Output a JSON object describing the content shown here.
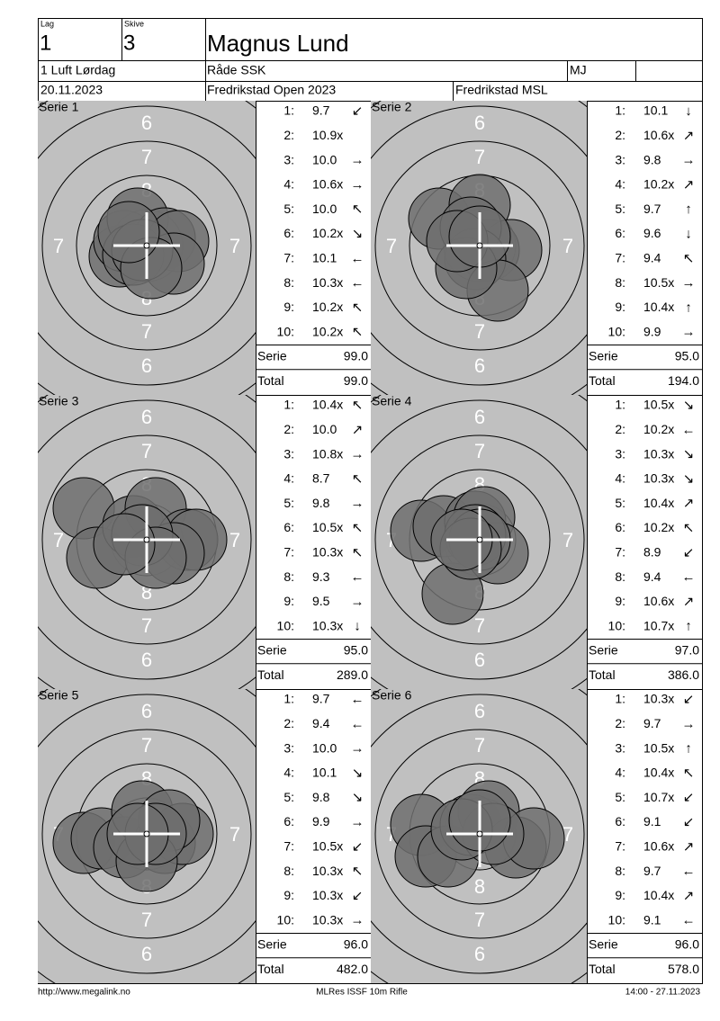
{
  "header": {
    "lag_label": "Lag",
    "lag": "1",
    "skive_label": "Skive",
    "skive": "3",
    "name": "Magnus Lund",
    "class": "1 Luft Lørdag",
    "club": "Råde SSK",
    "initials": "MJ",
    "date": "20.11.2023",
    "event": "Fredrikstad Open 2023",
    "location": "Fredrikstad MSL"
  },
  "target_labels": [
    "6",
    "7",
    "8"
  ],
  "series": [
    {
      "title": "Serie 1",
      "shots": [
        {
          "n": "1:",
          "value": "9.7",
          "arrow": "↙"
        },
        {
          "n": "2:",
          "value": "10.9x",
          "arrow": ""
        },
        {
          "n": "3:",
          "value": "10.0",
          "arrow": "→"
        },
        {
          "n": "4:",
          "value": "10.6x",
          "arrow": "→"
        },
        {
          "n": "5:",
          "value": "10.0",
          "arrow": "↖"
        },
        {
          "n": "6:",
          "value": "10.2x",
          "arrow": "↘"
        },
        {
          "n": "7:",
          "value": "10.1",
          "arrow": "←"
        },
        {
          "n": "8:",
          "value": "10.3x",
          "arrow": "←"
        },
        {
          "n": "9:",
          "value": "10.2x",
          "arrow": "↖"
        },
        {
          "n": "10:",
          "value": "10.2x",
          "arrow": "↖"
        }
      ],
      "serie_label": "Serie",
      "serie": "99.0",
      "total_label": "Total",
      "total": "99.0"
    },
    {
      "title": "Serie 2",
      "shots": [
        {
          "n": "1:",
          "value": "10.1",
          "arrow": "↓"
        },
        {
          "n": "2:",
          "value": "10.6x",
          "arrow": "↗"
        },
        {
          "n": "3:",
          "value": "9.8",
          "arrow": "→"
        },
        {
          "n": "4:",
          "value": "10.2x",
          "arrow": "↗"
        },
        {
          "n": "5:",
          "value": "9.7",
          "arrow": "↑"
        },
        {
          "n": "6:",
          "value": "9.6",
          "arrow": "↓"
        },
        {
          "n": "7:",
          "value": "9.4",
          "arrow": "↖"
        },
        {
          "n": "8:",
          "value": "10.5x",
          "arrow": "→"
        },
        {
          "n": "9:",
          "value": "10.4x",
          "arrow": "↑"
        },
        {
          "n": "10:",
          "value": "9.9",
          "arrow": "→"
        }
      ],
      "serie_label": "Serie",
      "serie": "95.0",
      "total_label": "Total",
      "total": "194.0"
    },
    {
      "title": "Serie 3",
      "shots": [
        {
          "n": "1:",
          "value": "10.4x",
          "arrow": "↖"
        },
        {
          "n": "2:",
          "value": "10.0",
          "arrow": "↗"
        },
        {
          "n": "3:",
          "value": "10.8x",
          "arrow": "→"
        },
        {
          "n": "4:",
          "value": "8.7",
          "arrow": "↖"
        },
        {
          "n": "5:",
          "value": "9.8",
          "arrow": "→"
        },
        {
          "n": "6:",
          "value": "10.5x",
          "arrow": "↖"
        },
        {
          "n": "7:",
          "value": "10.3x",
          "arrow": "↖"
        },
        {
          "n": "8:",
          "value": "9.3",
          "arrow": "←"
        },
        {
          "n": "9:",
          "value": "9.5",
          "arrow": "→"
        },
        {
          "n": "10:",
          "value": "10.3x",
          "arrow": "↓"
        }
      ],
      "serie_label": "Serie",
      "serie": "95.0",
      "total_label": "Total",
      "total": "289.0"
    },
    {
      "title": "Serie 4",
      "shots": [
        {
          "n": "1:",
          "value": "10.5x",
          "arrow": "↘"
        },
        {
          "n": "2:",
          "value": "10.2x",
          "arrow": "←"
        },
        {
          "n": "3:",
          "value": "10.3x",
          "arrow": "↘"
        },
        {
          "n": "4:",
          "value": "10.3x",
          "arrow": "↘"
        },
        {
          "n": "5:",
          "value": "10.4x",
          "arrow": "↗"
        },
        {
          "n": "6:",
          "value": "10.2x",
          "arrow": "↖"
        },
        {
          "n": "7:",
          "value": "8.9",
          "arrow": "↙"
        },
        {
          "n": "8:",
          "value": "9.4",
          "arrow": "←"
        },
        {
          "n": "9:",
          "value": "10.6x",
          "arrow": "↗"
        },
        {
          "n": "10:",
          "value": "10.7x",
          "arrow": "↑"
        }
      ],
      "serie_label": "Serie",
      "serie": "97.0",
      "total_label": "Total",
      "total": "386.0"
    },
    {
      "title": "Serie 5",
      "shots": [
        {
          "n": "1:",
          "value": "9.7",
          "arrow": "←"
        },
        {
          "n": "2:",
          "value": "9.4",
          "arrow": "←"
        },
        {
          "n": "3:",
          "value": "10.0",
          "arrow": "→"
        },
        {
          "n": "4:",
          "value": "10.1",
          "arrow": "↘"
        },
        {
          "n": "5:",
          "value": "9.8",
          "arrow": "↘"
        },
        {
          "n": "6:",
          "value": "9.9",
          "arrow": "→"
        },
        {
          "n": "7:",
          "value": "10.5x",
          "arrow": "↙"
        },
        {
          "n": "8:",
          "value": "10.3x",
          "arrow": "↖"
        },
        {
          "n": "9:",
          "value": "10.3x",
          "arrow": "↙"
        },
        {
          "n": "10:",
          "value": "10.3x",
          "arrow": "→"
        }
      ],
      "serie_label": "Serie",
      "serie": "96.0",
      "total_label": "Total",
      "total": "482.0"
    },
    {
      "title": "Serie 6",
      "shots": [
        {
          "n": "1:",
          "value": "10.3x",
          "arrow": "↙"
        },
        {
          "n": "2:",
          "value": "9.7",
          "arrow": "→"
        },
        {
          "n": "3:",
          "value": "10.5x",
          "arrow": "↑"
        },
        {
          "n": "4:",
          "value": "10.4x",
          "arrow": "↖"
        },
        {
          "n": "5:",
          "value": "10.7x",
          "arrow": "↙"
        },
        {
          "n": "6:",
          "value": "9.1",
          "arrow": "↙"
        },
        {
          "n": "7:",
          "value": "10.6x",
          "arrow": "↗"
        },
        {
          "n": "8:",
          "value": "9.7",
          "arrow": "←"
        },
        {
          "n": "9:",
          "value": "10.4x",
          "arrow": "↗"
        },
        {
          "n": "10:",
          "value": "9.1",
          "arrow": "←"
        }
      ],
      "serie_label": "Serie",
      "serie": "96.0",
      "total_label": "Total",
      "total": "578.0"
    }
  ],
  "footer": {
    "url": "http://www.megalink.no",
    "software": "MLRes ISSF 10m Rifle",
    "timestamp": "14:00 - 27.11.2023"
  }
}
